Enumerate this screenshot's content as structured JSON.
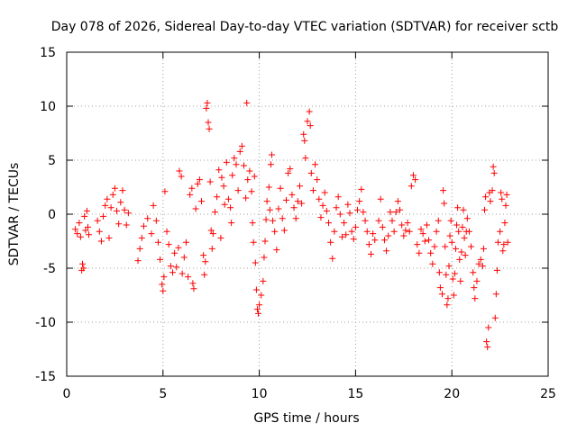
{
  "chart_data": {
    "type": "scatter",
    "title": "Day 078 of 2026, Sidereal Day-to-day VTEC variation (SDTVAR) for receiver sctb",
    "xlabel": "GPS time / hours",
    "ylabel": "SDTVAR / TECUs",
    "xlim": [
      0,
      25
    ],
    "ylim": [
      -15,
      15
    ],
    "xticks": [
      0,
      5,
      10,
      15,
      20,
      25
    ],
    "yticks": [
      -15,
      -10,
      -5,
      0,
      5,
      10,
      15
    ],
    "grid": true,
    "marker": "+",
    "color": "#ff0000",
    "series": [
      {
        "name": "SDTVAR",
        "points": [
          [
            0.45,
            -1.4
          ],
          [
            0.55,
            -1.8
          ],
          [
            0.65,
            -0.8
          ],
          [
            0.72,
            -2.1
          ],
          [
            0.78,
            -5.2
          ],
          [
            0.82,
            -4.6
          ],
          [
            0.88,
            -5.0
          ],
          [
            0.92,
            -0.2
          ],
          [
            0.98,
            -1.5
          ],
          [
            1.05,
            0.3
          ],
          [
            1.1,
            -1.2
          ],
          [
            1.15,
            -1.9
          ],
          [
            1.6,
            -0.6
          ],
          [
            1.7,
            -1.6
          ],
          [
            1.8,
            -2.5
          ],
          [
            1.9,
            -0.2
          ],
          [
            2.0,
            0.8
          ],
          [
            2.1,
            1.4
          ],
          [
            2.2,
            -2.2
          ],
          [
            2.3,
            0.6
          ],
          [
            2.4,
            1.8
          ],
          [
            2.5,
            2.4
          ],
          [
            2.6,
            0.3
          ],
          [
            2.7,
            -0.9
          ],
          [
            2.8,
            1.1
          ],
          [
            2.9,
            2.2
          ],
          [
            3.0,
            0.4
          ],
          [
            3.1,
            -1.0
          ],
          [
            3.2,
            0.1
          ],
          [
            3.7,
            -4.3
          ],
          [
            3.8,
            -3.2
          ],
          [
            3.9,
            -2.2
          ],
          [
            4.0,
            -1.1
          ],
          [
            4.2,
            -0.4
          ],
          [
            4.4,
            -1.8
          ],
          [
            4.5,
            0.8
          ],
          [
            4.65,
            -0.6
          ],
          [
            4.75,
            -2.6
          ],
          [
            4.85,
            -4.2
          ],
          [
            4.95,
            -6.5
          ],
          [
            5.0,
            -7.1
          ],
          [
            5.05,
            -5.8
          ],
          [
            5.1,
            2.1
          ],
          [
            5.2,
            -1.6
          ],
          [
            5.3,
            -2.8
          ],
          [
            5.4,
            -4.8
          ],
          [
            5.5,
            -5.4
          ],
          [
            5.6,
            -3.6
          ],
          [
            5.7,
            -4.9
          ],
          [
            5.8,
            -3.1
          ],
          [
            5.85,
            4.0
          ],
          [
            5.95,
            3.5
          ],
          [
            6.0,
            -5.5
          ],
          [
            6.1,
            -4.0
          ],
          [
            6.2,
            -2.6
          ],
          [
            6.3,
            -5.8
          ],
          [
            6.4,
            1.8
          ],
          [
            6.5,
            2.4
          ],
          [
            6.55,
            -6.4
          ],
          [
            6.6,
            -6.9
          ],
          [
            6.7,
            0.5
          ],
          [
            6.8,
            2.8
          ],
          [
            6.9,
            3.2
          ],
          [
            7.0,
            1.2
          ],
          [
            7.1,
            -3.8
          ],
          [
            7.15,
            -5.6
          ],
          [
            7.2,
            -4.4
          ],
          [
            7.25,
            9.8
          ],
          [
            7.3,
            10.3
          ],
          [
            7.35,
            8.5
          ],
          [
            7.4,
            7.9
          ],
          [
            7.45,
            3.0
          ],
          [
            7.5,
            -1.5
          ],
          [
            7.55,
            -3.2
          ],
          [
            7.6,
            -1.8
          ],
          [
            7.7,
            0.2
          ],
          [
            7.8,
            1.6
          ],
          [
            7.9,
            4.1
          ],
          [
            8.0,
            -2.2
          ],
          [
            8.05,
            3.4
          ],
          [
            8.15,
            2.6
          ],
          [
            8.2,
            0.9
          ],
          [
            8.3,
            4.8
          ],
          [
            8.4,
            1.4
          ],
          [
            8.5,
            0.6
          ],
          [
            8.55,
            -0.8
          ],
          [
            8.6,
            3.6
          ],
          [
            8.7,
            5.2
          ],
          [
            8.8,
            4.6
          ],
          [
            8.9,
            2.2
          ],
          [
            9.0,
            5.8
          ],
          [
            9.1,
            6.3
          ],
          [
            9.2,
            4.5
          ],
          [
            9.3,
            1.5
          ],
          [
            9.35,
            10.3
          ],
          [
            9.4,
            3.2
          ],
          [
            9.5,
            4.0
          ],
          [
            9.6,
            2.1
          ],
          [
            9.65,
            -0.8
          ],
          [
            9.7,
            -2.6
          ],
          [
            9.75,
            3.5
          ],
          [
            9.8,
            -4.5
          ],
          [
            9.85,
            -7.0
          ],
          [
            9.9,
            -8.8
          ],
          [
            9.95,
            -9.2
          ],
          [
            10.0,
            -8.4
          ],
          [
            10.1,
            -7.5
          ],
          [
            10.2,
            -6.2
          ],
          [
            10.25,
            -4.0
          ],
          [
            10.3,
            -2.5
          ],
          [
            10.35,
            -0.5
          ],
          [
            10.4,
            1.2
          ],
          [
            10.5,
            2.5
          ],
          [
            10.55,
            0.4
          ],
          [
            10.6,
            4.6
          ],
          [
            10.65,
            5.5
          ],
          [
            10.7,
            -0.6
          ],
          [
            10.8,
            -1.6
          ],
          [
            10.9,
            -3.3
          ],
          [
            11.0,
            0.5
          ],
          [
            11.1,
            2.4
          ],
          [
            11.2,
            -0.4
          ],
          [
            11.3,
            -1.5
          ],
          [
            11.4,
            1.3
          ],
          [
            11.5,
            3.8
          ],
          [
            11.6,
            4.2
          ],
          [
            11.7,
            1.8
          ],
          [
            11.8,
            0.6
          ],
          [
            11.9,
            -0.4
          ],
          [
            12.0,
            1.2
          ],
          [
            12.1,
            2.6
          ],
          [
            12.2,
            1.0
          ],
          [
            12.3,
            7.4
          ],
          [
            12.35,
            6.8
          ],
          [
            12.4,
            5.2
          ],
          [
            12.5,
            8.6
          ],
          [
            12.6,
            9.5
          ],
          [
            12.65,
            8.2
          ],
          [
            12.7,
            3.8
          ],
          [
            12.8,
            2.2
          ],
          [
            12.9,
            4.6
          ],
          [
            13.0,
            3.2
          ],
          [
            13.1,
            1.4
          ],
          [
            13.2,
            -0.3
          ],
          [
            13.3,
            0.8
          ],
          [
            13.4,
            2.0
          ],
          [
            13.5,
            0.3
          ],
          [
            13.6,
            -0.8
          ],
          [
            13.7,
            -2.6
          ],
          [
            13.8,
            -4.1
          ],
          [
            13.9,
            -1.6
          ],
          [
            14.0,
            0.6
          ],
          [
            14.1,
            1.6
          ],
          [
            14.2,
            0.0
          ],
          [
            14.3,
            -2.1
          ],
          [
            14.4,
            -0.8
          ],
          [
            14.5,
            -1.9
          ],
          [
            14.6,
            0.9
          ],
          [
            14.7,
            0.1
          ],
          [
            14.8,
            -1.6
          ],
          [
            14.9,
            -2.3
          ],
          [
            15.0,
            -1.2
          ],
          [
            15.1,
            0.4
          ],
          [
            15.2,
            1.2
          ],
          [
            15.3,
            2.3
          ],
          [
            15.4,
            0.2
          ],
          [
            15.5,
            -0.6
          ],
          [
            15.6,
            -1.6
          ],
          [
            15.7,
            -2.8
          ],
          [
            15.8,
            -3.7
          ],
          [
            15.9,
            -1.8
          ],
          [
            16.0,
            -2.4
          ],
          [
            16.2,
            -0.6
          ],
          [
            16.3,
            1.4
          ],
          [
            16.4,
            -1.2
          ],
          [
            16.5,
            -2.4
          ],
          [
            16.6,
            -3.4
          ],
          [
            16.7,
            -2.0
          ],
          [
            16.8,
            0.2
          ],
          [
            16.9,
            -0.6
          ],
          [
            17.0,
            -1.6
          ],
          [
            17.1,
            0.2
          ],
          [
            17.2,
            1.2
          ],
          [
            17.3,
            0.4
          ],
          [
            17.4,
            -1.0
          ],
          [
            17.5,
            -2.0
          ],
          [
            17.6,
            -1.5
          ],
          [
            17.7,
            -0.8
          ],
          [
            17.8,
            -1.6
          ],
          [
            17.9,
            2.6
          ],
          [
            18.0,
            3.6
          ],
          [
            18.1,
            3.2
          ],
          [
            18.2,
            -2.8
          ],
          [
            18.3,
            -3.6
          ],
          [
            18.4,
            -1.4
          ],
          [
            18.5,
            -1.8
          ],
          [
            18.6,
            -2.5
          ],
          [
            18.7,
            -1.0
          ],
          [
            18.8,
            -2.4
          ],
          [
            18.9,
            -3.6
          ],
          [
            19.0,
            -4.6
          ],
          [
            19.1,
            -3.0
          ],
          [
            19.2,
            -1.6
          ],
          [
            19.3,
            -0.6
          ],
          [
            19.35,
            -5.4
          ],
          [
            19.4,
            -6.8
          ],
          [
            19.5,
            -7.4
          ],
          [
            19.55,
            2.2
          ],
          [
            19.6,
            1.0
          ],
          [
            19.65,
            -3.0
          ],
          [
            19.7,
            -5.6
          ],
          [
            19.75,
            -8.4
          ],
          [
            19.8,
            -7.8
          ],
          [
            19.85,
            -4.8
          ],
          [
            19.9,
            -2.0
          ],
          [
            19.95,
            -0.6
          ],
          [
            20.0,
            -2.6
          ],
          [
            20.05,
            -6.0
          ],
          [
            20.1,
            -7.5
          ],
          [
            20.15,
            -5.5
          ],
          [
            20.2,
            -3.2
          ],
          [
            20.25,
            -1.0
          ],
          [
            20.3,
            0.6
          ],
          [
            20.35,
            -1.6
          ],
          [
            20.4,
            -4.2
          ],
          [
            20.45,
            -6.2
          ],
          [
            20.5,
            -3.5
          ],
          [
            20.55,
            -1.2
          ],
          [
            20.6,
            0.4
          ],
          [
            20.65,
            -2.2
          ],
          [
            20.7,
            -3.8
          ],
          [
            20.75,
            -1.6
          ],
          [
            20.8,
            -0.4
          ],
          [
            20.9,
            -1.6
          ],
          [
            21.0,
            -3.0
          ],
          [
            21.1,
            -5.4
          ],
          [
            21.15,
            -6.8
          ],
          [
            21.2,
            -7.8
          ],
          [
            21.3,
            -6.2
          ],
          [
            21.4,
            -4.6
          ],
          [
            21.5,
            -4.2
          ],
          [
            21.6,
            -4.8
          ],
          [
            21.65,
            -3.2
          ],
          [
            21.7,
            0.4
          ],
          [
            21.75,
            1.6
          ],
          [
            21.8,
            -11.8
          ],
          [
            21.85,
            -12.3
          ],
          [
            21.9,
            -10.5
          ],
          [
            21.95,
            2.0
          ],
          [
            22.0,
            1.2
          ],
          [
            22.1,
            2.2
          ],
          [
            22.15,
            4.4
          ],
          [
            22.2,
            3.8
          ],
          [
            22.25,
            -9.6
          ],
          [
            22.3,
            -7.4
          ],
          [
            22.35,
            -5.2
          ],
          [
            22.4,
            -2.6
          ],
          [
            22.5,
            -1.6
          ],
          [
            22.55,
            2.0
          ],
          [
            22.6,
            1.4
          ],
          [
            22.65,
            -3.4
          ],
          [
            22.7,
            -2.8
          ],
          [
            22.75,
            -0.8
          ],
          [
            22.8,
            0.8
          ],
          [
            22.85,
            1.8
          ],
          [
            22.9,
            -2.6
          ]
        ]
      }
    ]
  }
}
